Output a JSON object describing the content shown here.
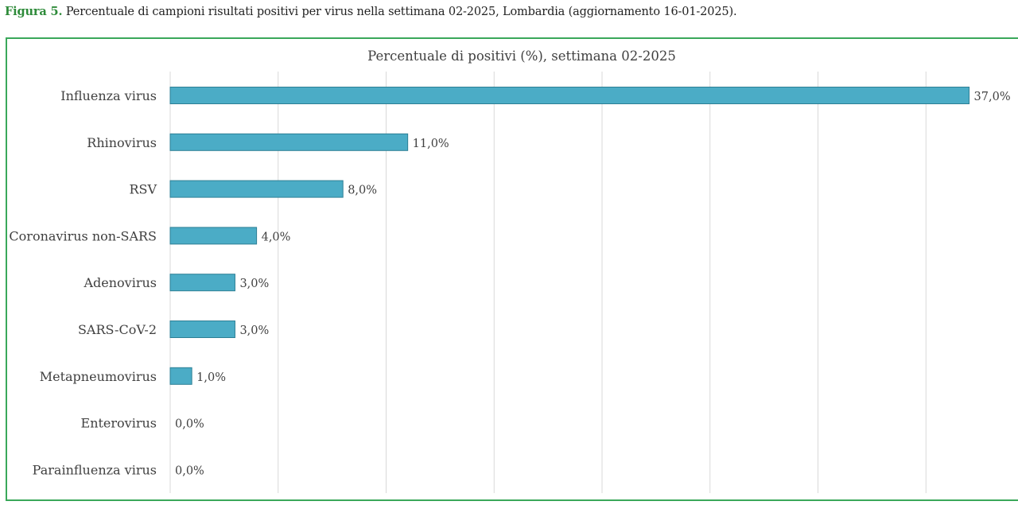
{
  "caption": {
    "label": "Figura 5.",
    "text": "Percentuale di campioni risultati positivi per virus nella settimana 02-2025, Lombardia (aggiornamento 16-01-2025)."
  },
  "colors": {
    "bar_fill": "#4bacc6",
    "bar_stroke": "#2d7f95",
    "grid": "#d9d9d9",
    "frame": "#3aa85a",
    "caption_label": "#2e8b3a"
  },
  "chart_data": {
    "type": "bar",
    "orientation": "horizontal",
    "title": "Percentuale di positivi (%), settimana 02-2025",
    "categories": [
      "Influenza virus",
      "Rhinovirus",
      "RSV",
      "Coronavirus non-SARS",
      "Adenovirus",
      "SARS-CoV-2",
      "Metapneumovirus",
      "Enterovirus",
      "Parainfluenza virus"
    ],
    "values": [
      37.0,
      11.0,
      8.0,
      4.0,
      3.0,
      3.0,
      1.0,
      0.0,
      0.0
    ],
    "value_labels": [
      "37,0%",
      "11,0%",
      "8,0%",
      "4,0%",
      "3,0%",
      "3,0%",
      "1,0%",
      "0,0%",
      "0,0%"
    ],
    "xlim": [
      0,
      40
    ],
    "grid": true,
    "legend": "none"
  }
}
